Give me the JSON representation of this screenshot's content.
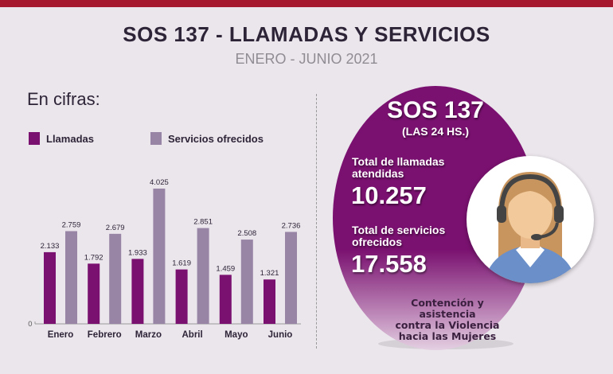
{
  "header": {
    "title": "SOS 137 - LLAMADAS Y SERVICIOS",
    "subtitle": "ENERO - JUNIO 2021"
  },
  "section_label": "En cifras:",
  "colors": {
    "llamadas": "#7a1170",
    "servicios": "#9885a6",
    "topbar": "#a5182d"
  },
  "chart_data": {
    "type": "bar",
    "categories": [
      "Enero",
      "Febrero",
      "Marzo",
      "Abril",
      "Mayo",
      "Junio"
    ],
    "series": [
      {
        "name": "Llamadas",
        "values": [
          2133,
          1792,
          1933,
          1619,
          1459,
          1321
        ],
        "labels": [
          "2.133",
          "1.792",
          "1.933",
          "1.619",
          "1.459",
          "1.321"
        ]
      },
      {
        "name": "Servicios ofrecidos",
        "values": [
          2759,
          2679,
          4025,
          2851,
          2508,
          2736
        ],
        "labels": [
          "2.759",
          "2.679",
          "4.025",
          "2.851",
          "2.508",
          "2.736"
        ]
      }
    ],
    "yaxis_tick": "0",
    "legend": "top-left",
    "grid": false
  },
  "panel": {
    "title": "SOS 137",
    "subtitle": "(LAS 24 HS.)",
    "calls_label_1": "Total de llamadas",
    "calls_label_2": "atendidas",
    "calls_value": "10.257",
    "services_label_1": "Total de servicios",
    "services_label_2": "ofrecidos",
    "services_value": "17.558",
    "footnote_1": "Contención y asistencia",
    "footnote_2": "contra la Violencia",
    "footnote_3": "hacia las Mujeres",
    "icon": "call-center-operator-icon"
  }
}
